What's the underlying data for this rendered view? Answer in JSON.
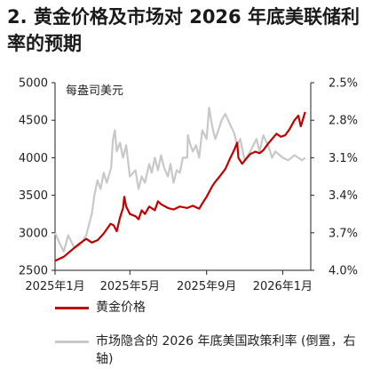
{
  "header": {
    "title": "2. 黄金价格及市场对 2026 年底美联储利率的预期"
  },
  "colors": {
    "gold": "#c00000",
    "rate": "#c8c8c8",
    "axis": "#222222"
  },
  "chart_data": {
    "type": "line",
    "unit_label": "每盎司美元",
    "x_ticks": [
      "2025年1月",
      "2025年5月",
      "2025年9月",
      "2026年1月"
    ],
    "x_range": [
      "2025-01-01",
      "2026-02-15"
    ],
    "left_axis": {
      "ticks": [
        "5000",
        "4500",
        "4000",
        "3500",
        "3000",
        "2500"
      ],
      "ylim": [
        2500,
        5000
      ]
    },
    "right_axis": {
      "ticks": [
        "2.5%",
        "2.8%",
        "3.1%",
        "3.4%",
        "3.7%",
        "4.0%"
      ],
      "ylim": [
        4.0,
        2.5
      ],
      "inverted": true
    },
    "legend_position": "bottom",
    "series": [
      {
        "name": "黄金价格",
        "axis": "left",
        "x": [
          "2025-01-01",
          "2025-01-15",
          "2025-02-01",
          "2025-02-10",
          "2025-02-20",
          "2025-03-01",
          "2025-03-10",
          "2025-03-20",
          "2025-03-31",
          "2025-04-05",
          "2025-04-10",
          "2025-04-15",
          "2025-04-20",
          "2025-04-22",
          "2025-04-25",
          "2025-05-01",
          "2025-05-10",
          "2025-05-15",
          "2025-05-20",
          "2025-05-25",
          "2025-06-01",
          "2025-06-10",
          "2025-06-15",
          "2025-06-20",
          "2025-07-01",
          "2025-07-10",
          "2025-07-20",
          "2025-08-01",
          "2025-08-10",
          "2025-08-20",
          "2025-08-25",
          "2025-09-01",
          "2025-09-10",
          "2025-09-15",
          "2025-09-22",
          "2025-10-01",
          "2025-10-08",
          "2025-10-15",
          "2025-10-20",
          "2025-10-22",
          "2025-10-28",
          "2025-11-03",
          "2025-11-10",
          "2025-11-18",
          "2025-11-25",
          "2025-12-01",
          "2025-12-08",
          "2025-12-15",
          "2025-12-22",
          "2025-12-29",
          "2026-01-05",
          "2026-01-12",
          "2026-01-20",
          "2026-01-26",
          "2026-01-30",
          "2026-02-02",
          "2026-02-06"
        ],
        "values": [
          2625,
          2680,
          2800,
          2860,
          2920,
          2870,
          2900,
          2990,
          3120,
          3100,
          3020,
          3200,
          3330,
          3480,
          3350,
          3250,
          3220,
          3180,
          3300,
          3250,
          3350,
          3300,
          3420,
          3380,
          3330,
          3310,
          3350,
          3330,
          3360,
          3320,
          3390,
          3480,
          3620,
          3680,
          3750,
          3850,
          3980,
          4100,
          4200,
          4000,
          3920,
          3980,
          4050,
          4080,
          4060,
          4100,
          4180,
          4250,
          4320,
          4280,
          4300,
          4380,
          4500,
          4560,
          4420,
          4500,
          4610
        ]
      },
      {
        "name": "市场隐含的 2026 年底美国政策利率 (倒置，右轴)",
        "axis": "right",
        "x": [
          "2025-01-01",
          "2025-01-08",
          "2025-01-15",
          "2025-01-22",
          "2025-02-01",
          "2025-02-10",
          "2025-02-20",
          "2025-03-01",
          "2025-03-05",
          "2025-03-10",
          "2025-03-15",
          "2025-03-20",
          "2025-03-25",
          "2025-04-01",
          "2025-04-04",
          "2025-04-07",
          "2025-04-10",
          "2025-04-15",
          "2025-04-20",
          "2025-04-25",
          "2025-05-01",
          "2025-05-10",
          "2025-05-15",
          "2025-05-20",
          "2025-05-25",
          "2025-06-01",
          "2025-06-05",
          "2025-06-10",
          "2025-06-15",
          "2025-06-20",
          "2025-06-25",
          "2025-07-01",
          "2025-07-05",
          "2025-07-10",
          "2025-07-15",
          "2025-07-20",
          "2025-07-25",
          "2025-08-01",
          "2025-08-02",
          "2025-08-05",
          "2025-08-10",
          "2025-08-15",
          "2025-08-20",
          "2025-08-25",
          "2025-09-01",
          "2025-09-05",
          "2025-09-10",
          "2025-09-15",
          "2025-09-20",
          "2025-09-25",
          "2025-10-01",
          "2025-10-10",
          "2025-10-15",
          "2025-10-20",
          "2025-10-25",
          "2025-11-01",
          "2025-11-10",
          "2025-11-15",
          "2025-11-20",
          "2025-11-25",
          "2025-12-01",
          "2025-12-10",
          "2025-12-15",
          "2025-12-20",
          "2026-01-01",
          "2026-01-10",
          "2026-01-20",
          "2026-02-01",
          "2026-02-06"
        ],
        "values": [
          3.7,
          3.78,
          3.85,
          3.72,
          3.82,
          3.8,
          3.72,
          3.55,
          3.4,
          3.28,
          3.35,
          3.22,
          3.3,
          3.18,
          2.95,
          2.88,
          3.05,
          2.98,
          3.1,
          3.0,
          3.25,
          3.2,
          3.35,
          3.25,
          3.3,
          3.15,
          3.22,
          3.1,
          3.2,
          3.08,
          3.18,
          3.25,
          3.15,
          3.3,
          3.2,
          3.22,
          3.1,
          3.1,
          2.92,
          2.98,
          3.05,
          3.0,
          3.1,
          2.88,
          2.95,
          2.7,
          2.85,
          2.95,
          2.88,
          2.8,
          2.75,
          2.85,
          2.9,
          3.0,
          2.95,
          3.12,
          3.05,
          3.0,
          2.95,
          3.05,
          2.92,
          3.02,
          3.1,
          3.05,
          3.1,
          3.12,
          3.08,
          3.12,
          3.1
        ]
      }
    ]
  }
}
